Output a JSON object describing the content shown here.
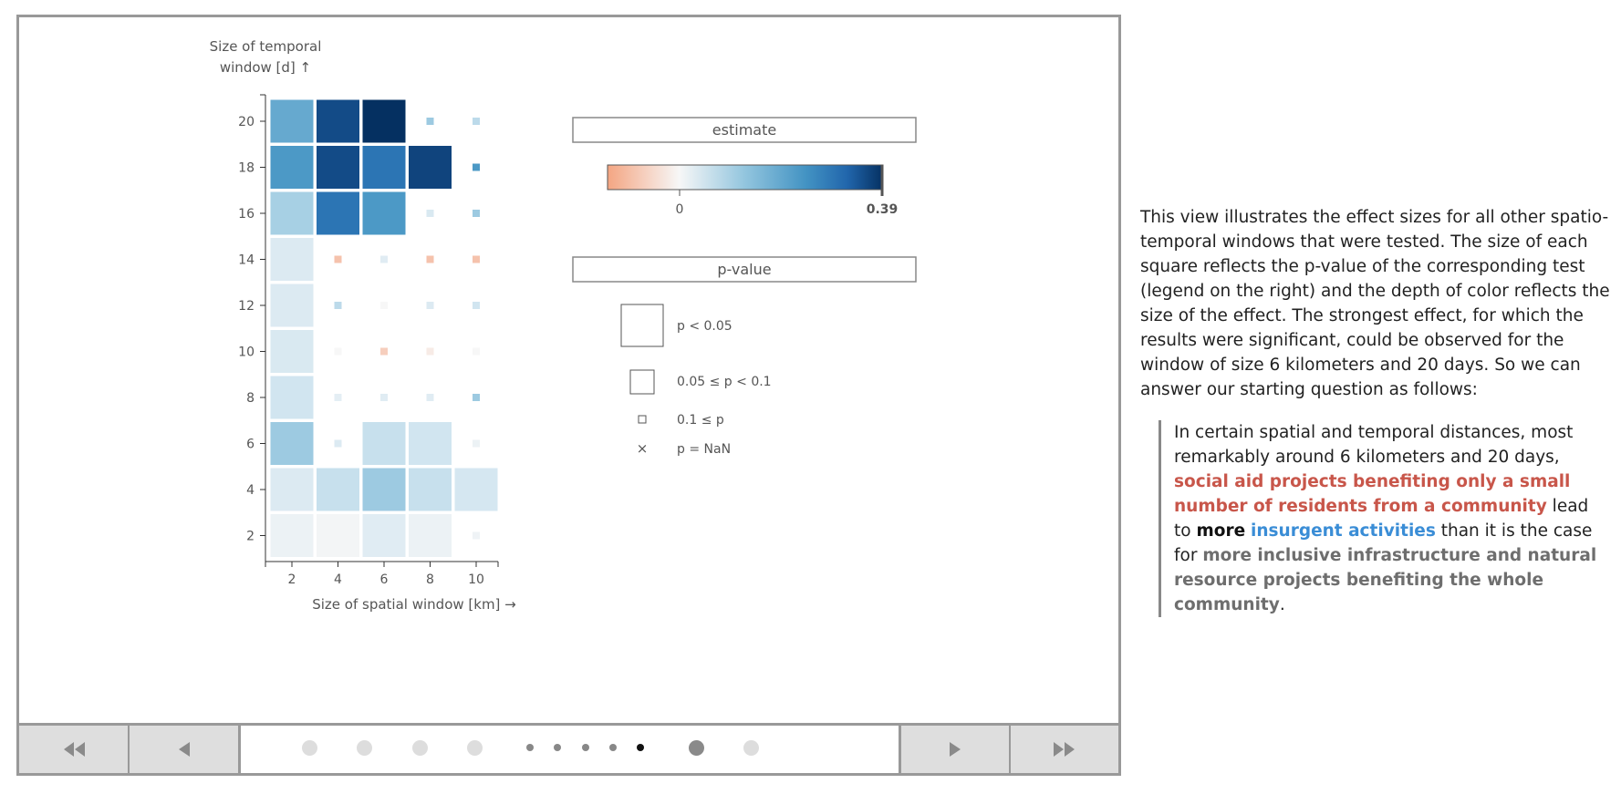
{
  "chart_data": {
    "type": "heatmap",
    "ylabel_line1": "Size of temporal",
    "ylabel_line2": "window [d] ↑",
    "xlabel": "Size of spatial window [km] →",
    "x_ticks": [
      "2",
      "4",
      "6",
      "8",
      "10"
    ],
    "y_ticks": [
      "20",
      "18",
      "16",
      "14",
      "12",
      "10",
      "8",
      "6",
      "4",
      "2"
    ],
    "x_values": [
      2,
      4,
      6,
      8,
      10
    ],
    "y_values": [
      20,
      18,
      16,
      14,
      12,
      10,
      8,
      6,
      4,
      2
    ],
    "cells": [
      {
        "x": 2,
        "y": 20,
        "estimate": 0.21,
        "p_class": "p<0.05"
      },
      {
        "x": 4,
        "y": 20,
        "estimate": 0.35,
        "p_class": "p<0.05"
      },
      {
        "x": 6,
        "y": 20,
        "estimate": 0.39,
        "p_class": "p<0.05"
      },
      {
        "x": 8,
        "y": 20,
        "estimate": 0.15,
        "p_class": "0.1<=p"
      },
      {
        "x": 10,
        "y": 20,
        "estimate": 0.12,
        "p_class": "0.1<=p"
      },
      {
        "x": 2,
        "y": 18,
        "estimate": 0.24,
        "p_class": "p<0.05"
      },
      {
        "x": 4,
        "y": 18,
        "estimate": 0.35,
        "p_class": "p<0.05"
      },
      {
        "x": 6,
        "y": 18,
        "estimate": 0.29,
        "p_class": "p<0.05"
      },
      {
        "x": 8,
        "y": 18,
        "estimate": 0.36,
        "p_class": "p<0.05"
      },
      {
        "x": 10,
        "y": 18,
        "estimate": 0.24,
        "p_class": "0.1<=p"
      },
      {
        "x": 2,
        "y": 16,
        "estimate": 0.14,
        "p_class": "p<0.05"
      },
      {
        "x": 4,
        "y": 16,
        "estimate": 0.29,
        "p_class": "p<0.05"
      },
      {
        "x": 6,
        "y": 16,
        "estimate": 0.24,
        "p_class": "p<0.05"
      },
      {
        "x": 8,
        "y": 16,
        "estimate": 0.08,
        "p_class": "0.1<=p"
      },
      {
        "x": 10,
        "y": 16,
        "estimate": 0.15,
        "p_class": "0.1<=p"
      },
      {
        "x": 2,
        "y": 14,
        "estimate": 0.07,
        "p_class": "p<0.05"
      },
      {
        "x": 4,
        "y": 14,
        "estimate": -0.09,
        "p_class": "0.1<=p"
      },
      {
        "x": 6,
        "y": 14,
        "estimate": 0.06,
        "p_class": "0.1<=p"
      },
      {
        "x": 8,
        "y": 14,
        "estimate": -0.09,
        "p_class": "0.1<=p"
      },
      {
        "x": 10,
        "y": 14,
        "estimate": -0.09,
        "p_class": "0.1<=p"
      },
      {
        "x": 2,
        "y": 12,
        "estimate": 0.07,
        "p_class": "p<0.05"
      },
      {
        "x": 4,
        "y": 12,
        "estimate": 0.12,
        "p_class": "0.1<=p"
      },
      {
        "x": 6,
        "y": 12,
        "estimate": 0.0,
        "p_class": "0.1<=p"
      },
      {
        "x": 8,
        "y": 12,
        "estimate": 0.07,
        "p_class": "0.1<=p"
      },
      {
        "x": 10,
        "y": 12,
        "estimate": 0.1,
        "p_class": "0.1<=p"
      },
      {
        "x": 2,
        "y": 10,
        "estimate": 0.08,
        "p_class": "p<0.05"
      },
      {
        "x": 4,
        "y": 10,
        "estimate": 0.0,
        "p_class": "0.1<=p"
      },
      {
        "x": 6,
        "y": 10,
        "estimate": -0.07,
        "p_class": "0.1<=p"
      },
      {
        "x": 8,
        "y": 10,
        "estimate": -0.02,
        "p_class": "0.1<=p"
      },
      {
        "x": 10,
        "y": 10,
        "estimate": 0.0,
        "p_class": "0.1<=p"
      },
      {
        "x": 2,
        "y": 8,
        "estimate": 0.1,
        "p_class": "p<0.05"
      },
      {
        "x": 4,
        "y": 8,
        "estimate": 0.05,
        "p_class": "0.1<=p"
      },
      {
        "x": 6,
        "y": 8,
        "estimate": 0.06,
        "p_class": "0.1<=p"
      },
      {
        "x": 8,
        "y": 8,
        "estimate": 0.06,
        "p_class": "0.1<=p"
      },
      {
        "x": 10,
        "y": 8,
        "estimate": 0.15,
        "p_class": "0.1<=p"
      },
      {
        "x": 2,
        "y": 6,
        "estimate": 0.15,
        "p_class": "p<0.05"
      },
      {
        "x": 4,
        "y": 6,
        "estimate": 0.07,
        "p_class": "0.1<=p"
      },
      {
        "x": 6,
        "y": 6,
        "estimate": 0.11,
        "p_class": "p<0.05"
      },
      {
        "x": 8,
        "y": 6,
        "estimate": 0.1,
        "p_class": "p<0.05"
      },
      {
        "x": 10,
        "y": 6,
        "estimate": 0.03,
        "p_class": "0.1<=p"
      },
      {
        "x": 2,
        "y": 4,
        "estimate": 0.07,
        "p_class": "p<0.05"
      },
      {
        "x": 4,
        "y": 4,
        "estimate": 0.11,
        "p_class": "p<0.05"
      },
      {
        "x": 6,
        "y": 4,
        "estimate": 0.15,
        "p_class": "p<0.05"
      },
      {
        "x": 8,
        "y": 4,
        "estimate": 0.11,
        "p_class": "p<0.05"
      },
      {
        "x": 10,
        "y": 4,
        "estimate": 0.09,
        "p_class": "p<0.05"
      },
      {
        "x": 2,
        "y": 2,
        "estimate": 0.03,
        "p_class": "p<0.05"
      },
      {
        "x": 4,
        "y": 2,
        "estimate": 0.01,
        "p_class": "p<0.05"
      },
      {
        "x": 6,
        "y": 2,
        "estimate": 0.06,
        "p_class": "p<0.05"
      },
      {
        "x": 8,
        "y": 2,
        "estimate": 0.03,
        "p_class": "p<0.05"
      },
      {
        "x": 10,
        "y": 2,
        "estimate": 0.02,
        "p_class": "0.1<=p"
      }
    ],
    "estimate_legend": {
      "title": "estimate",
      "min": -0.14,
      "max": 0.39,
      "tick_zero": "0",
      "tick_max": "0.39"
    },
    "pvalue_legend": {
      "title": "p-value",
      "items": [
        "p < 0.05",
        "0.05 ≤ p < 0.1",
        "0.1 ≤ p",
        "p = NaN"
      ],
      "nan_marker": "×"
    },
    "colors": {
      "negative": "#f4a582",
      "neutral": "#f7f7f7",
      "mid_positive": "#92c5de",
      "positive": "#4393c3",
      "strong_positive": "#053061",
      "axis": "#333333"
    }
  },
  "navigation": {
    "first_icon": "double-left-arrow-icon",
    "prev_icon": "left-arrow-icon",
    "next_icon": "right-arrow-icon",
    "last_icon": "double-right-arrow-icon",
    "steps": [
      {
        "style": "large"
      },
      {
        "style": "large"
      },
      {
        "style": "large"
      },
      {
        "style": "large"
      },
      {
        "style": "small"
      },
      {
        "style": "small"
      },
      {
        "style": "small"
      },
      {
        "style": "small"
      },
      {
        "style": "active"
      },
      {
        "style": "large-dark"
      },
      {
        "style": "large"
      }
    ],
    "current_step": 9
  },
  "text": {
    "intro": "This view illustrates the effect sizes for all other spatio-temporal windows that were tested. The size of each square reflects the p-value of the corresponding test (legend on the right) and the depth of color reflects the size of the effect. The strongest effect, for which the results were significant, could be observed for the window of size 6 kilometers and 20 days. So we can answer our starting question as follows:",
    "quote_part1": "In certain spatial and temporal distances, most remarkably around 6 kilometers and 20 days, ",
    "quote_red": "social aid projects benefiting only a small number of residents from a community",
    "quote_part2": " lead to ",
    "quote_black": "more",
    "quote_part3": " ",
    "quote_blue": "insurgent activities",
    "quote_part4": " than it is the case for ",
    "quote_grey": "more inclusive infrastructure and natural resource projects benefiting the whole community",
    "quote_end": "."
  }
}
